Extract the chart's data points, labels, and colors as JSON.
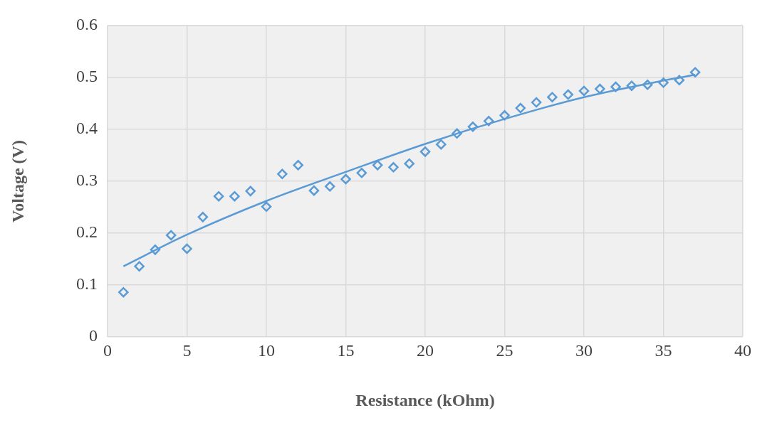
{
  "chart_data": {
    "type": "scatter",
    "xlabel": "Resistance (kOhm)",
    "ylabel": "Voltage (V)",
    "xlim": [
      0,
      40
    ],
    "xticks": [
      0,
      5,
      10,
      15,
      20,
      25,
      30,
      35,
      40
    ],
    "ylim": [
      0,
      0.6
    ],
    "yticks": [
      0,
      0.1,
      0.2,
      0.3,
      0.4,
      0.5,
      0.6
    ],
    "grid": true,
    "legend": false,
    "marker": "diamond",
    "series": [
      {
        "color": "#5b9bd5",
        "x": [
          1,
          2,
          3,
          4,
          5,
          6,
          7,
          8,
          9,
          10,
          11,
          12,
          13,
          14,
          15,
          16,
          17,
          18,
          19,
          20,
          21,
          22,
          23,
          24,
          25,
          26,
          27,
          28,
          29,
          30,
          31,
          32,
          33,
          34,
          35,
          36,
          37
        ],
        "values": [
          0.086,
          0.136,
          0.168,
          0.196,
          0.17,
          0.231,
          0.271,
          0.271,
          0.281,
          0.251,
          0.314,
          0.331,
          0.282,
          0.29,
          0.304,
          0.316,
          0.331,
          0.327,
          0.334,
          0.357,
          0.371,
          0.392,
          0.405,
          0.416,
          0.427,
          0.441,
          0.452,
          0.462,
          0.467,
          0.474,
          0.478,
          0.482,
          0.484,
          0.486,
          0.49,
          0.495,
          0.51
        ]
      },
      {
        "type": "line",
        "marker": "none",
        "color": "#5b9bd5",
        "x": [
          1,
          5,
          10,
          15,
          20,
          25,
          30,
          35,
          37
        ],
        "values": [
          0.136,
          0.197,
          0.262,
          0.318,
          0.372,
          0.42,
          0.462,
          0.494,
          0.505
        ]
      }
    ]
  }
}
